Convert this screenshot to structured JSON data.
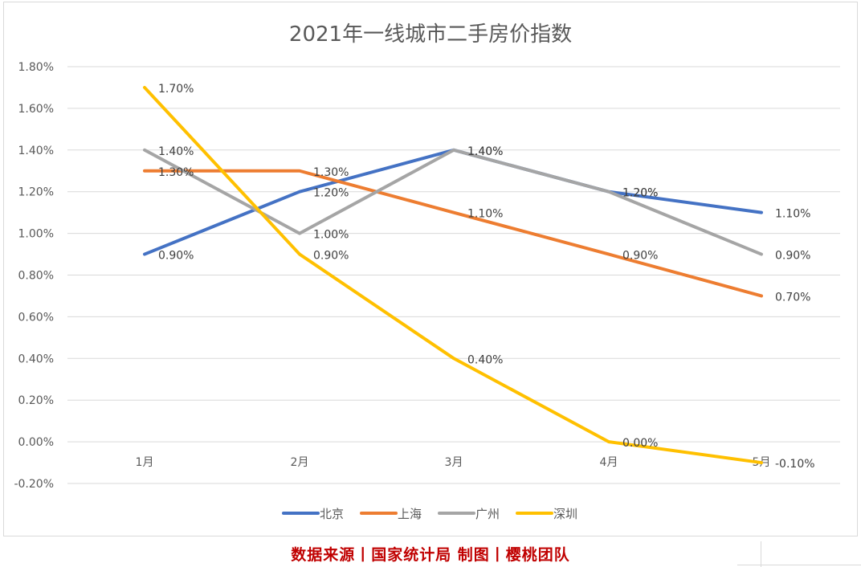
{
  "chart_data": {
    "type": "line",
    "title": "2021年一线城市二手房价指数",
    "categories": [
      "1月",
      "2月",
      "3月",
      "4月",
      "5月"
    ],
    "y_ticks": [
      "-0.20%",
      "0.00%",
      "0.20%",
      "0.40%",
      "0.60%",
      "0.80%",
      "1.00%",
      "1.20%",
      "1.40%",
      "1.60%",
      "1.80%"
    ],
    "ylim": [
      -0.2,
      1.8
    ],
    "grid": true,
    "legend_position": "bottom",
    "series": [
      {
        "name": "北京",
        "color": "#4472c4",
        "values": [
          0.9,
          1.2,
          1.4,
          1.2,
          1.1
        ],
        "labels": [
          "0.90%",
          "1.20%",
          "1.40%",
          "1.20%",
          "1.10%"
        ]
      },
      {
        "name": "上海",
        "color": "#ed7d31",
        "values": [
          1.3,
          1.3,
          1.1,
          0.9,
          0.7
        ],
        "labels": [
          "1.30%",
          "1.30%",
          "1.10%",
          "0.90%",
          "0.70%"
        ]
      },
      {
        "name": "广州",
        "color": "#a5a5a5",
        "values": [
          1.4,
          1.0,
          1.4,
          1.2,
          0.9
        ],
        "labels": [
          "1.40%",
          "1.00%",
          "1.40%",
          "1.20%",
          "0.90%"
        ]
      },
      {
        "name": "深圳",
        "color": "#ffc000",
        "values": [
          1.7,
          0.9,
          0.4,
          0.0,
          -0.1
        ],
        "labels": [
          "1.70%",
          "0.90%",
          "0.40%",
          "0.00%",
          "-0.10%"
        ]
      }
    ]
  },
  "footer": {
    "source": "数据来源丨国家统计局  制图丨樱桃团队"
  }
}
